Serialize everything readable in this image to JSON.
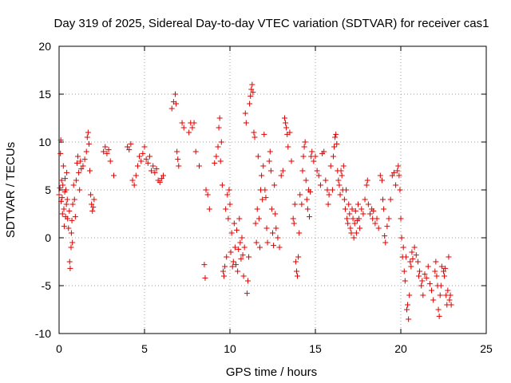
{
  "chart_data": {
    "type": "scatter",
    "title": "Day 319 of 2025, Sidereal Day-to-day VTEC variation (SDTVAR) for receiver cas1",
    "xlabel": "GPS time / hours",
    "ylabel": "SDTVAR / TECUs",
    "xlim": [
      0,
      25
    ],
    "ylim": [
      -10,
      20
    ],
    "xticks": [
      0,
      5,
      10,
      15,
      20,
      25
    ],
    "yticks": [
      -10,
      -5,
      0,
      5,
      10,
      15,
      20
    ],
    "grid": true,
    "marker": "plus",
    "series": [
      {
        "name": "SDTVAR",
        "color": "#e00000",
        "points": [
          [
            0.0,
            4.5
          ],
          [
            0.05,
            5.2
          ],
          [
            0.08,
            8.8
          ],
          [
            0.1,
            10.2
          ],
          [
            0.12,
            3.8
          ],
          [
            0.15,
            6.0
          ],
          [
            0.18,
            4.2
          ],
          [
            0.2,
            2.5
          ],
          [
            0.22,
            5.5
          ],
          [
            0.25,
            7.5
          ],
          [
            0.28,
            3.0
          ],
          [
            0.3,
            1.2
          ],
          [
            0.33,
            4.8
          ],
          [
            0.35,
            6.2
          ],
          [
            0.38,
            2.2
          ],
          [
            0.4,
            5.0
          ],
          [
            0.43,
            3.5
          ],
          [
            0.45,
            6.8
          ],
          [
            0.48,
            4.0
          ],
          [
            0.5,
            2.0
          ],
          [
            0.55,
            1.0
          ],
          [
            0.6,
            2.8
          ],
          [
            0.62,
            -2.5
          ],
          [
            0.65,
            -3.2
          ],
          [
            0.7,
            -1.0
          ],
          [
            0.72,
            0.5
          ],
          [
            0.75,
            1.8
          ],
          [
            0.78,
            -0.5
          ],
          [
            0.8,
            3.5
          ],
          [
            0.85,
            5.5
          ],
          [
            0.9,
            4.0
          ],
          [
            0.95,
            2.2
          ],
          [
            1.0,
            6.0
          ],
          [
            1.05,
            7.8
          ],
          [
            1.1,
            8.5
          ],
          [
            1.15,
            6.8
          ],
          [
            1.2,
            5.0
          ],
          [
            1.25,
            8.0
          ],
          [
            1.3,
            7.2
          ],
          [
            1.4,
            7.5
          ],
          [
            1.5,
            8.2
          ],
          [
            1.6,
            9.0
          ],
          [
            1.65,
            10.5
          ],
          [
            1.7,
            11.0
          ],
          [
            1.75,
            9.8
          ],
          [
            1.8,
            7.0
          ],
          [
            1.85,
            4.5
          ],
          [
            1.9,
            3.5
          ],
          [
            1.95,
            2.8
          ],
          [
            2.0,
            3.2
          ],
          [
            2.05,
            4.0
          ],
          [
            2.6,
            9.0
          ],
          [
            2.7,
            9.5
          ],
          [
            2.8,
            8.8
          ],
          [
            2.9,
            9.2
          ],
          [
            3.0,
            8.0
          ],
          [
            3.2,
            6.5
          ],
          [
            4.0,
            9.5
          ],
          [
            4.1,
            9.2
          ],
          [
            4.2,
            9.8
          ],
          [
            4.3,
            6.0
          ],
          [
            4.4,
            5.5
          ],
          [
            4.5,
            6.5
          ],
          [
            4.6,
            7.5
          ],
          [
            4.7,
            8.5
          ],
          [
            4.8,
            8.0
          ],
          [
            4.9,
            8.8
          ],
          [
            5.0,
            9.5
          ],
          [
            5.1,
            8.2
          ],
          [
            5.2,
            7.8
          ],
          [
            5.3,
            8.5
          ],
          [
            5.4,
            7.0
          ],
          [
            5.5,
            7.5
          ],
          [
            5.6,
            6.8
          ],
          [
            5.7,
            7.2
          ],
          [
            5.8,
            6.0
          ],
          [
            5.9,
            5.8
          ],
          [
            6.0,
            6.2
          ],
          [
            6.1,
            6.5
          ],
          [
            6.6,
            13.5
          ],
          [
            6.7,
            14.2
          ],
          [
            6.8,
            15.0
          ],
          [
            6.85,
            14.0
          ],
          [
            6.9,
            9.0
          ],
          [
            6.95,
            8.2
          ],
          [
            7.0,
            7.5
          ],
          [
            7.2,
            12.0
          ],
          [
            7.3,
            11.5
          ],
          [
            7.6,
            11.0
          ],
          [
            7.7,
            12.0
          ],
          [
            7.8,
            11.5
          ],
          [
            7.9,
            12.0
          ],
          [
            8.0,
            9.0
          ],
          [
            8.2,
            7.5
          ],
          [
            8.5,
            -2.8
          ],
          [
            8.55,
            -4.2
          ],
          [
            8.6,
            5.0
          ],
          [
            8.7,
            4.5
          ],
          [
            8.8,
            3.0
          ],
          [
            9.1,
            7.8
          ],
          [
            9.2,
            8.5
          ],
          [
            9.3,
            9.5
          ],
          [
            9.35,
            11.5
          ],
          [
            9.4,
            12.5
          ],
          [
            9.45,
            8.0
          ],
          [
            9.5,
            10.0
          ],
          [
            9.55,
            5.5
          ],
          [
            9.6,
            -3.5
          ],
          [
            9.65,
            -4.0
          ],
          [
            9.7,
            -3.0
          ],
          [
            9.75,
            3.0
          ],
          [
            9.8,
            -2.0
          ],
          [
            9.85,
            4.5
          ],
          [
            9.9,
            2.0
          ],
          [
            9.95,
            5.0
          ],
          [
            10.0,
            3.5
          ],
          [
            10.05,
            -1.5
          ],
          [
            10.1,
            0.5
          ],
          [
            10.15,
            -3.0
          ],
          [
            10.2,
            -2.5
          ],
          [
            10.25,
            1.5
          ],
          [
            10.3,
            -1.0
          ],
          [
            10.35,
            -2.8
          ],
          [
            10.4,
            0.8
          ],
          [
            10.45,
            -3.5
          ],
          [
            10.5,
            -1.2
          ],
          [
            10.55,
            2.0
          ],
          [
            10.6,
            -0.5
          ],
          [
            10.65,
            -2.2
          ],
          [
            10.7,
            0.0
          ],
          [
            10.75,
            -1.8
          ],
          [
            10.8,
            -4.0
          ],
          [
            10.85,
            -1.0
          ],
          [
            10.9,
            13.0
          ],
          [
            10.95,
            12.0
          ],
          [
            11.0,
            -5.8
          ],
          [
            11.05,
            -4.5
          ],
          [
            11.1,
            -2.0
          ],
          [
            11.15,
            14.0
          ],
          [
            11.2,
            14.8
          ],
          [
            11.25,
            15.5
          ],
          [
            11.3,
            16.0
          ],
          [
            11.35,
            15.2
          ],
          [
            11.4,
            11.0
          ],
          [
            11.45,
            10.5
          ],
          [
            11.5,
            1.5
          ],
          [
            11.55,
            -0.5
          ],
          [
            11.6,
            3.0
          ],
          [
            11.65,
            8.5
          ],
          [
            11.7,
            2.0
          ],
          [
            11.75,
            -1.0
          ],
          [
            11.8,
            5.0
          ],
          [
            11.85,
            6.5
          ],
          [
            11.9,
            4.0
          ],
          [
            11.95,
            7.5
          ],
          [
            12.0,
            10.8
          ],
          [
            12.05,
            5.0
          ],
          [
            12.1,
            4.2
          ],
          [
            12.15,
            1.0
          ],
          [
            12.2,
            -0.5
          ],
          [
            12.3,
            8.0
          ],
          [
            12.35,
            9.0
          ],
          [
            12.4,
            7.0
          ],
          [
            12.45,
            3.0
          ],
          [
            12.5,
            0.5
          ],
          [
            12.55,
            -0.8
          ],
          [
            12.6,
            5.5
          ],
          [
            12.65,
            2.5
          ],
          [
            12.7,
            1.0
          ],
          [
            12.8,
            0.0
          ],
          [
            12.9,
            -1.0
          ],
          [
            13.0,
            6.5
          ],
          [
            13.1,
            7.0
          ],
          [
            13.2,
            12.5
          ],
          [
            13.25,
            12.0
          ],
          [
            13.3,
            11.5
          ],
          [
            13.35,
            10.8
          ],
          [
            13.4,
            9.5
          ],
          [
            13.5,
            11.0
          ],
          [
            13.6,
            8.0
          ],
          [
            13.7,
            2.0
          ],
          [
            13.75,
            1.5
          ],
          [
            13.8,
            3.5
          ],
          [
            13.85,
            -2.5
          ],
          [
            13.9,
            -3.5
          ],
          [
            13.95,
            -4.0
          ],
          [
            14.0,
            -2.0
          ],
          [
            14.05,
            0.5
          ],
          [
            14.1,
            4.5
          ],
          [
            14.2,
            3.5
          ],
          [
            14.25,
            7.0
          ],
          [
            14.3,
            8.5
          ],
          [
            14.35,
            9.5
          ],
          [
            14.4,
            10.0
          ],
          [
            14.45,
            6.0
          ],
          [
            14.5,
            4.0
          ],
          [
            14.55,
            3.0
          ],
          [
            14.6,
            5.0
          ],
          [
            14.65,
            2.2
          ],
          [
            14.7,
            4.8
          ],
          [
            14.75,
            8.5
          ],
          [
            14.8,
            9.0
          ],
          [
            14.9,
            8.0
          ],
          [
            15.0,
            8.5
          ],
          [
            15.1,
            7.0
          ],
          [
            15.2,
            6.5
          ],
          [
            15.3,
            5.5
          ],
          [
            15.4,
            8.8
          ],
          [
            15.5,
            9.0
          ],
          [
            15.6,
            6.0
          ],
          [
            15.7,
            5.0
          ],
          [
            15.75,
            3.5
          ],
          [
            15.8,
            4.5
          ],
          [
            15.9,
            7.5
          ],
          [
            16.0,
            5.0
          ],
          [
            16.05,
            8.5
          ],
          [
            16.1,
            9.5
          ],
          [
            16.15,
            10.5
          ],
          [
            16.2,
            10.8
          ],
          [
            16.25,
            9.8
          ],
          [
            16.3,
            7.0
          ],
          [
            16.35,
            6.0
          ],
          [
            16.4,
            5.5
          ],
          [
            16.45,
            4.5
          ],
          [
            16.5,
            7.0
          ],
          [
            16.55,
            6.5
          ],
          [
            16.6,
            5.0
          ],
          [
            16.65,
            7.5
          ],
          [
            16.7,
            4.0
          ],
          [
            16.75,
            3.0
          ],
          [
            16.8,
            5.0
          ],
          [
            16.85,
            2.0
          ],
          [
            16.9,
            1.5
          ],
          [
            16.95,
            3.5
          ],
          [
            17.0,
            2.5
          ],
          [
            17.05,
            1.0
          ],
          [
            17.1,
            0.5
          ],
          [
            17.15,
            3.0
          ],
          [
            17.2,
            2.0
          ],
          [
            17.25,
            0.0
          ],
          [
            17.3,
            1.5
          ],
          [
            17.35,
            2.8
          ],
          [
            17.4,
            0.5
          ],
          [
            17.45,
            1.8
          ],
          [
            17.5,
            3.5
          ],
          [
            17.55,
            2.0
          ],
          [
            17.6,
            1.0
          ],
          [
            17.7,
            3.0
          ],
          [
            17.8,
            2.5
          ],
          [
            17.9,
            4.0
          ],
          [
            18.0,
            5.5
          ],
          [
            18.05,
            6.0
          ],
          [
            18.1,
            3.5
          ],
          [
            18.2,
            2.5
          ],
          [
            18.3,
            3.0
          ],
          [
            18.35,
            2.0
          ],
          [
            18.4,
            2.8
          ],
          [
            18.5,
            1.5
          ],
          [
            18.6,
            2.0
          ],
          [
            18.7,
            1.0
          ],
          [
            18.8,
            6.5
          ],
          [
            18.9,
            6.0
          ],
          [
            18.95,
            4.0
          ],
          [
            19.0,
            3.0
          ],
          [
            19.05,
            0.2
          ],
          [
            19.1,
            -0.5
          ],
          [
            19.2,
            1.2
          ],
          [
            19.3,
            2.0
          ],
          [
            19.4,
            4.0
          ],
          [
            19.5,
            6.5
          ],
          [
            19.6,
            6.8
          ],
          [
            19.7,
            5.5
          ],
          [
            19.8,
            7.0
          ],
          [
            19.85,
            7.5
          ],
          [
            19.9,
            6.5
          ],
          [
            19.95,
            5.0
          ],
          [
            20.0,
            2.0
          ],
          [
            20.05,
            0.0
          ],
          [
            20.1,
            -2.0
          ],
          [
            20.15,
            -1.0
          ],
          [
            20.2,
            -3.5
          ],
          [
            20.25,
            -4.5
          ],
          [
            20.3,
            -2.0
          ],
          [
            20.35,
            -7.5
          ],
          [
            20.4,
            -7.0
          ],
          [
            20.45,
            -8.5
          ],
          [
            20.5,
            -6.0
          ],
          [
            20.55,
            -2.5
          ],
          [
            20.6,
            -3.0
          ],
          [
            20.65,
            -1.5
          ],
          [
            20.7,
            -2.2
          ],
          [
            20.8,
            -1.0
          ],
          [
            20.9,
            -1.8
          ],
          [
            21.0,
            -2.5
          ],
          [
            21.05,
            -4.0
          ],
          [
            21.1,
            -3.5
          ],
          [
            21.2,
            -5.0
          ],
          [
            21.25,
            -4.5
          ],
          [
            21.3,
            -6.0
          ],
          [
            21.4,
            -3.8
          ],
          [
            21.5,
            -4.2
          ],
          [
            21.6,
            -3.0
          ],
          [
            21.7,
            -4.8
          ],
          [
            21.8,
            -5.5
          ],
          [
            21.9,
            -6.5
          ],
          [
            22.0,
            -3.5
          ],
          [
            22.05,
            -2.5
          ],
          [
            22.1,
            -4.0
          ],
          [
            22.15,
            -5.0
          ],
          [
            22.2,
            -7.5
          ],
          [
            22.25,
            -8.2
          ],
          [
            22.3,
            -6.0
          ],
          [
            22.35,
            -5.0
          ],
          [
            22.4,
            -3.0
          ],
          [
            22.5,
            -3.5
          ],
          [
            22.55,
            -4.0
          ],
          [
            22.6,
            -3.2
          ],
          [
            22.65,
            -6.0
          ],
          [
            22.7,
            -7.0
          ],
          [
            22.75,
            -5.5
          ],
          [
            22.8,
            -2.0
          ],
          [
            22.85,
            -6.5
          ],
          [
            22.9,
            -6.0
          ],
          [
            22.95,
            -7.0
          ]
        ]
      }
    ]
  }
}
